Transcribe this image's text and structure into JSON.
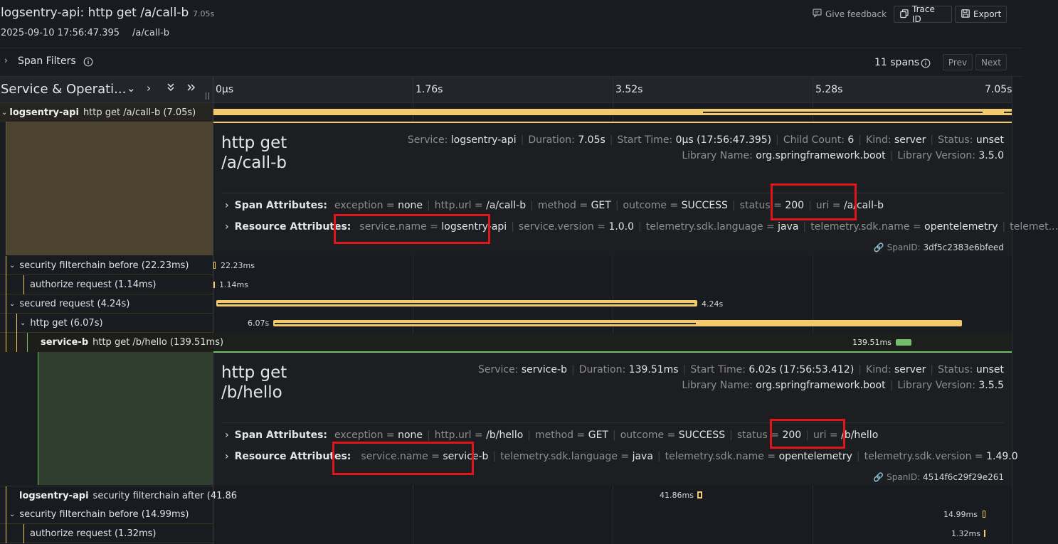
{
  "header": {
    "title": "logsentry-api: http get /a/call-b",
    "duration": "7.05s",
    "date": "2025-09-10 17:56:47.395",
    "path": "/a/call-b",
    "feedback_label": "Give feedback",
    "trace_id_label": "Trace ID",
    "export_label": "Export"
  },
  "filters": {
    "label": "Span Filters",
    "spans_count": "11 spans",
    "prev_label": "Prev",
    "next_label": "Next"
  },
  "timeline": {
    "column_title": "Service & Operati...",
    "ticks": [
      "0μs",
      "1.76s",
      "3.52s",
      "5.28s",
      "7.05s"
    ]
  },
  "rows": [
    {
      "service": "logsentry-api",
      "op": "http get /a/call-b (7.05s)"
    },
    {
      "op": "security filterchain before (22.23ms)",
      "bar_label": "22.23ms"
    },
    {
      "op": "authorize request (1.14ms)",
      "bar_label": "1.14ms"
    },
    {
      "op": "secured request (4.24s)",
      "bar_label": "4.24s"
    },
    {
      "op": "http get (6.07s)",
      "bar_label": "6.07s"
    },
    {
      "service": "service-b",
      "op": "http get /b/hello (139.51ms)",
      "bar_label": "139.51ms"
    },
    {
      "service": "logsentry-api",
      "op": "security filterchain after (41.86",
      "bar_label": "41.86ms"
    },
    {
      "op": "security filterchain before (14.99ms)",
      "bar_label": "14.99ms"
    },
    {
      "op": "authorize request (1.32ms)",
      "bar_label": "1.32ms"
    }
  ],
  "detail1": {
    "title_line1": "http get",
    "title_line2": "/a/call-b",
    "service_k": "Service:",
    "service_v": "logsentry-api",
    "duration_k": "Duration:",
    "duration_v": "7.05s",
    "start_k": "Start Time:",
    "start_v": "0μs (17:56:47.395)",
    "child_k": "Child Count:",
    "child_v": "6",
    "kind_k": "Kind:",
    "kind_v": "server",
    "status_k": "Status:",
    "status_v": "unset",
    "lib_k": "Library Name:",
    "lib_v": "org.springframework.boot",
    "libver_k": "Library Version:",
    "libver_v": "3.5.0",
    "span_attr_label": "Span Attributes:",
    "span_attrs": [
      {
        "k": "exception",
        "v": "none"
      },
      {
        "k": "http.url",
        "v": "/a/call-b"
      },
      {
        "k": "method",
        "v": "GET"
      },
      {
        "k": "outcome",
        "v": "SUCCESS"
      },
      {
        "k": "status",
        "v": "200"
      },
      {
        "k": "uri",
        "v": "/a/call-b"
      }
    ],
    "res_attr_label": "Resource Attributes:",
    "res_attrs": [
      {
        "k": "service.name",
        "v": "logsentry-api"
      },
      {
        "k": "service.version",
        "v": "1.0.0"
      },
      {
        "k": "telemetry.sdk.language",
        "v": "java"
      },
      {
        "k": "telemetry.sdk.name",
        "v": "opentelemetry"
      },
      {
        "k": "telemet...",
        "v": ""
      }
    ],
    "spanid_k": "SpanID:",
    "spanid_v": "3df5c2383e6bfeed"
  },
  "detail2": {
    "title_line1": "http get",
    "title_line2": "/b/hello",
    "service_k": "Service:",
    "service_v": "service-b",
    "duration_k": "Duration:",
    "duration_v": "139.51ms",
    "start_k": "Start Time:",
    "start_v": "6.02s (17:56:53.412)",
    "kind_k": "Kind:",
    "kind_v": "server",
    "status_k": "Status:",
    "status_v": "unset",
    "lib_k": "Library Name:",
    "lib_v": "org.springframework.boot",
    "libver_k": "Library Version:",
    "libver_v": "3.5.5",
    "span_attr_label": "Span Attributes:",
    "span_attrs": [
      {
        "k": "exception",
        "v": "none"
      },
      {
        "k": "http.url",
        "v": "/b/hello"
      },
      {
        "k": "method",
        "v": "GET"
      },
      {
        "k": "outcome",
        "v": "SUCCESS"
      },
      {
        "k": "status",
        "v": "200"
      },
      {
        "k": "uri",
        "v": "/b/hello"
      }
    ],
    "res_attr_label": "Resource Attributes:",
    "res_attrs": [
      {
        "k": "service.name",
        "v": "service-b"
      },
      {
        "k": "telemetry.sdk.language",
        "v": "java"
      },
      {
        "k": "telemetry.sdk.name",
        "v": "opentelemetry"
      },
      {
        "k": "telemetry.sdk.version",
        "v": "1.49.0"
      }
    ],
    "spanid_k": "SpanID:",
    "spanid_v": "4514f6c29f29e261"
  },
  "colors": {
    "span_yellow": "#f2c96d",
    "span_green": "#73bf69",
    "highlight_red": "#e0141b"
  }
}
